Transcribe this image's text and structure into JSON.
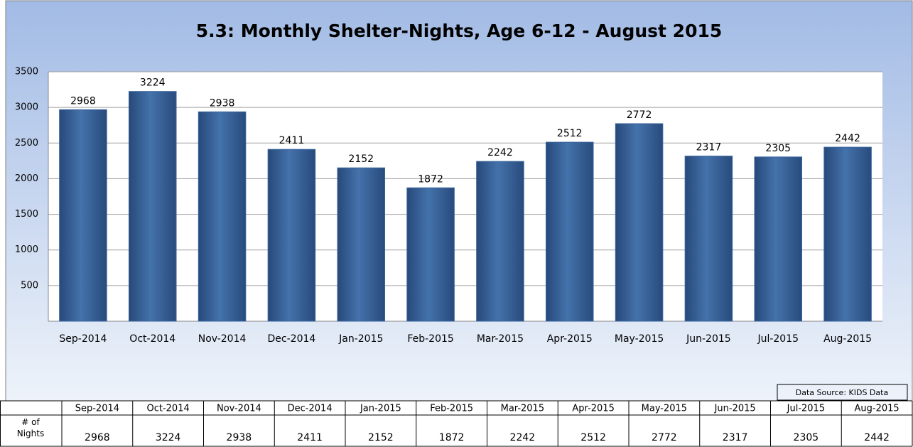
{
  "chart_data": {
    "type": "bar",
    "title": "5.3: Monthly Shelter-Nights, Age 6-12 - August 2015",
    "categories": [
      "Sep-2014",
      "Oct-2014",
      "Nov-2014",
      "Dec-2014",
      "Jan-2015",
      "Feb-2015",
      "Mar-2015",
      "Apr-2015",
      "May-2015",
      "Jun-2015",
      "Jul-2015",
      "Aug-2015"
    ],
    "values": [
      2968,
      3224,
      2938,
      2411,
      2152,
      1872,
      2242,
      2512,
      2772,
      2317,
      2305,
      2442
    ],
    "color": "#3a66a0",
    "ylim": [
      0,
      3500
    ],
    "yticks": [
      500,
      1000,
      1500,
      2000,
      2500,
      3000,
      3500
    ],
    "grid": true,
    "annotation": "Data Source: KIDS Data"
  },
  "table": {
    "row_label": "# of Nights",
    "columns": [
      "Sep-2014",
      "Oct-2014",
      "Nov-2014",
      "Dec-2014",
      "Jan-2015",
      "Feb-2015",
      "Mar-2015",
      "Apr-2015",
      "May-2015",
      "Jun-2015",
      "Jul-2015",
      "Aug-2015"
    ],
    "values": [
      "2968",
      "3224",
      "2938",
      "2411",
      "2152",
      "1872",
      "2242",
      "2512",
      "2772",
      "2317",
      "2305",
      "2442"
    ]
  }
}
